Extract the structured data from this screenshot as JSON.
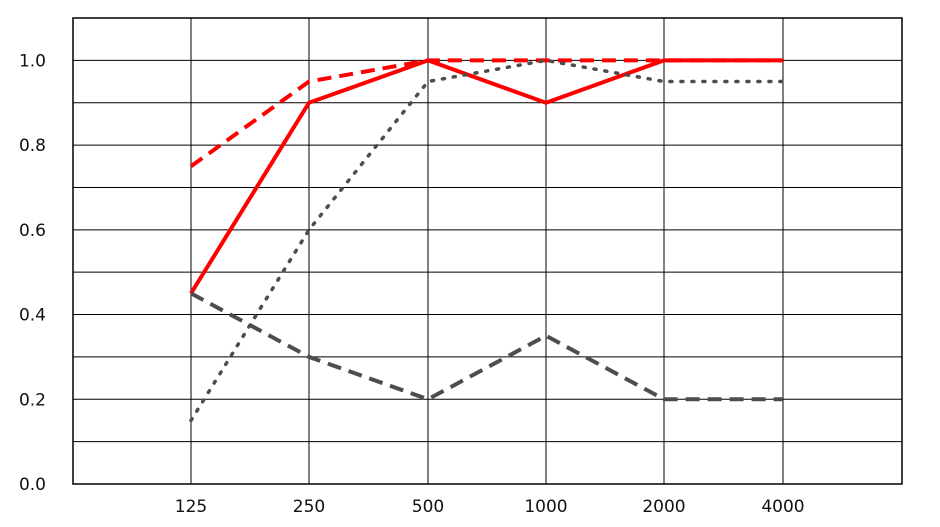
{
  "chart_data": {
    "type": "line",
    "title": "",
    "xlabel": "",
    "ylabel": "",
    "categories": [
      "125",
      "250",
      "500",
      "1000",
      "2000",
      "4000"
    ],
    "ylim": [
      0,
      1.1
    ],
    "yticks": [
      0.0,
      0.2,
      0.4,
      0.6,
      0.8,
      1.0
    ],
    "ytick_labels": [
      "0.0",
      "0.2",
      "0.4",
      "0.6",
      "0.8",
      "1.0"
    ],
    "grid": true,
    "legend": "none",
    "series": [
      {
        "color": "#ff0000",
        "dash": "solid",
        "values": [
          0.45,
          0.9,
          1.0,
          0.9,
          1.0,
          1.0
        ]
      },
      {
        "color": "#ff0000",
        "dash": "dashed",
        "values": [
          0.75,
          0.95,
          1.0,
          1.0,
          1.0,
          1.0
        ]
      },
      {
        "color": "#4d4d4d",
        "dash": "dotted",
        "values": [
          0.15,
          0.6,
          0.95,
          1.0,
          0.95,
          0.95
        ]
      },
      {
        "color": "#4d4d4d",
        "dash": "dashed",
        "values": [
          0.45,
          0.3,
          0.2,
          0.35,
          0.2,
          0.2
        ]
      }
    ]
  }
}
